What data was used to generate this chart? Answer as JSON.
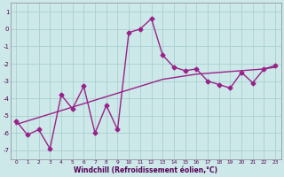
{
  "xlabel": "Windchill (Refroidissement éolien,°C)",
  "x_hours": [
    0,
    1,
    2,
    3,
    4,
    5,
    6,
    7,
    8,
    9,
    10,
    11,
    12,
    13,
    14,
    15,
    16,
    17,
    18,
    19,
    20,
    21,
    22,
    23
  ],
  "line1_y": [
    -5.3,
    -6.1,
    -5.8,
    -6.9,
    -3.8,
    -4.6,
    -3.3,
    -6.0,
    -4.4,
    -5.8,
    -0.2,
    0.0,
    0.6,
    -1.5,
    -2.2,
    -2.4,
    -2.3,
    -3.0,
    -3.2,
    -3.4,
    -2.5,
    -3.1,
    -2.3,
    -2.1
  ],
  "line2_y": [
    -5.5,
    -5.3,
    -5.1,
    -4.9,
    -4.7,
    -4.5,
    -4.3,
    -4.1,
    -3.9,
    -3.7,
    -3.5,
    -3.3,
    -3.1,
    -2.9,
    -2.8,
    -2.7,
    -2.6,
    -2.55,
    -2.5,
    -2.45,
    -2.4,
    -2.35,
    -2.3,
    -2.2
  ],
  "line_color": "#992288",
  "bg_color": "#cce8e8",
  "grid_color": "#aad0d0",
  "ylim": [
    -7.5,
    1.5
  ],
  "yticks": [
    -7,
    -6,
    -5,
    -4,
    -3,
    -2,
    -1,
    0,
    1
  ],
  "marker": "D",
  "markersize": 2.5,
  "linewidth": 1.0
}
